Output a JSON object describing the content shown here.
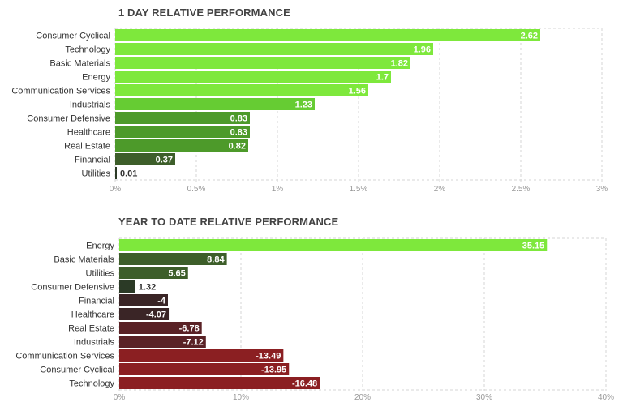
{
  "chart_data": [
    {
      "type": "bar",
      "orientation": "horizontal",
      "title": "1 DAY RELATIVE PERFORMANCE",
      "categories": [
        "Consumer Cyclical",
        "Technology",
        "Basic Materials",
        "Energy",
        "Communication Services",
        "Industrials",
        "Consumer Defensive",
        "Healthcare",
        "Real Estate",
        "Financial",
        "Utilities"
      ],
      "values": [
        2.62,
        1.96,
        1.82,
        1.7,
        1.56,
        1.23,
        0.83,
        0.83,
        0.82,
        0.37,
        0.01
      ],
      "value_labels": [
        "2.62",
        "1.96",
        "1.82",
        "1.7",
        "1.56",
        "1.23",
        "0.83",
        "0.83",
        "0.82",
        "0.37",
        "0.01"
      ],
      "colors": [
        "#7ee83c",
        "#7ee83c",
        "#7ee83c",
        "#7ee83c",
        "#7ee83c",
        "#66cc33",
        "#4d9a2a",
        "#4d9a2a",
        "#4d9a2a",
        "#3d5e2a",
        "#2b3a26"
      ],
      "xlim": [
        0,
        3
      ],
      "ticks": [
        0,
        0.5,
        1,
        1.5,
        2,
        2.5,
        3
      ],
      "tick_labels": [
        "0%",
        "0.5%",
        "1%",
        "1.5%",
        "2%",
        "2.5%",
        "3%"
      ],
      "grid": true
    },
    {
      "type": "bar",
      "orientation": "horizontal",
      "title": "YEAR TO DATE RELATIVE PERFORMANCE",
      "categories": [
        "Energy",
        "Basic Materials",
        "Utilities",
        "Consumer Defensive",
        "Financial",
        "Healthcare",
        "Real Estate",
        "Industrials",
        "Communication Services",
        "Consumer Cyclical",
        "Technology"
      ],
      "values": [
        35.15,
        8.84,
        5.65,
        1.32,
        -4,
        -4.07,
        -6.78,
        -7.12,
        -13.49,
        -13.95,
        -16.48
      ],
      "value_labels": [
        "35.15",
        "8.84",
        "5.65",
        "1.32",
        "-4",
        "-4.07",
        "-6.78",
        "-7.12",
        "-13.49",
        "-13.95",
        "-16.48"
      ],
      "colors": [
        "#7ee83c",
        "#3d5e2a",
        "#3d5e2a",
        "#2b3a26",
        "#3a2526",
        "#3a2526",
        "#5a2226",
        "#5a2226",
        "#8b1f22",
        "#8b1f22",
        "#8b1f22"
      ],
      "xlim": [
        0,
        40
      ],
      "ticks": [
        0,
        10,
        20,
        30,
        40
      ],
      "tick_labels": [
        "0%",
        "10%",
        "20%",
        "30%",
        "40%"
      ],
      "grid": true
    }
  ]
}
